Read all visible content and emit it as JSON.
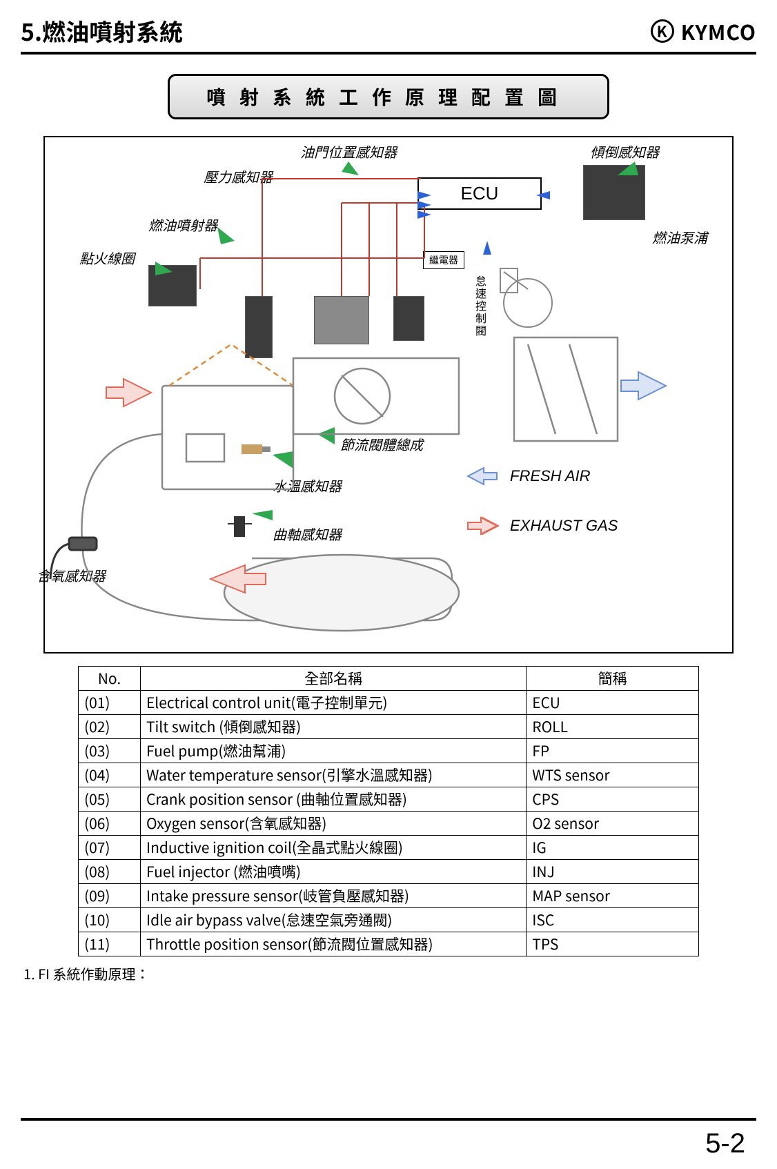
{
  "header": {
    "section_no": "5.",
    "section_title": "燃油噴射系統",
    "brand": "KYMCO"
  },
  "title_box": "噴射系統工作原理配置圖",
  "diagram": {
    "labels": {
      "throttle_pos": "油門位置感知器",
      "tilt_sensor": "傾倒感知器",
      "pressure_sensor": "壓力感知器",
      "fuel_injector": "燃油噴射器",
      "ignition_coil": "點火線圈",
      "fuel_pump": "燃油泵浦",
      "relay": "繼電器",
      "isc": "怠速控制閥",
      "throttle_body": "節流閥體總成",
      "water_temp": "水溫感知器",
      "crank_sensor": "曲軸感知器",
      "o2_sensor": "含氧感知器",
      "ecu": "ECU"
    },
    "legend": {
      "fresh_air": "FRESH AIR",
      "exhaust_gas": "EXHAUST GAS"
    },
    "colors": {
      "fresh_air_arrow": "#6b8fd6",
      "exhaust_arrow": "#e26a5a",
      "signal_arrow_green": "#2fa84f",
      "signal_arrow_blue": "#2b62d9",
      "signal_line_red": "#c0392b",
      "outline_gray": "#888888"
    }
  },
  "table": {
    "headers": {
      "no": "No.",
      "name": "全部名稱",
      "abbr": "簡稱"
    },
    "rows": [
      {
        "no": "(01)",
        "name": "Electrical control unit(電子控制單元)",
        "abbr": "ECU"
      },
      {
        "no": "(02)",
        "name": "Tilt switch (傾倒感知器)",
        "abbr": "ROLL"
      },
      {
        "no": "(03)",
        "name": "Fuel pump(燃油幫浦)",
        "abbr": "FP"
      },
      {
        "no": "(04)",
        "name": "Water temperature sensor(引擎水溫感知器)",
        "abbr": "WTS sensor"
      },
      {
        "no": "(05)",
        "name": "Crank position sensor (曲軸位置感知器)",
        "abbr": "CPS"
      },
      {
        "no": "(06)",
        "name": "Oxygen sensor(含氧感知器)",
        "abbr": "O2 sensor"
      },
      {
        "no": "(07)",
        "name": "Inductive ignition coil(全晶式點火線圈)",
        "abbr": "IG"
      },
      {
        "no": "(08)",
        "name": "Fuel injector (燃油噴嘴)",
        "abbr": "INJ"
      },
      {
        "no": "(09)",
        "name": "Intake pressure sensor(岐管負壓感知器)",
        "abbr": "MAP sensor"
      },
      {
        "no": "(10)",
        "name": "Idle air bypass valve(怠速空氣旁通閥)",
        "abbr": "ISC"
      },
      {
        "no": "(11)",
        "name": "Throttle position sensor(節流閥位置感知器)",
        "abbr": "TPS"
      }
    ]
  },
  "footnote": "1. FI 系統作動原理：",
  "page_number": "5-2"
}
